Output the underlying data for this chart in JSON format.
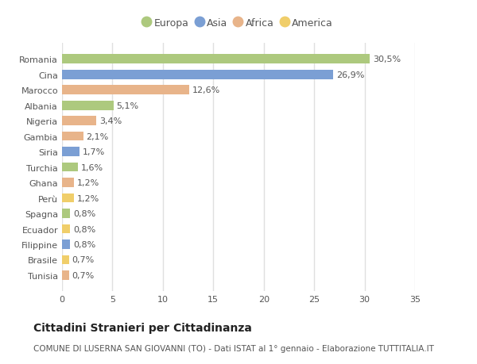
{
  "categories": [
    "Romania",
    "Cina",
    "Marocco",
    "Albania",
    "Nigeria",
    "Gambia",
    "Siria",
    "Turchia",
    "Ghana",
    "Perù",
    "Spagna",
    "Ecuador",
    "Filippine",
    "Brasile",
    "Tunisia"
  ],
  "values": [
    30.5,
    26.9,
    12.6,
    5.1,
    3.4,
    2.1,
    1.7,
    1.6,
    1.2,
    1.2,
    0.8,
    0.8,
    0.8,
    0.7,
    0.7
  ],
  "labels": [
    "30,5%",
    "26,9%",
    "12,6%",
    "5,1%",
    "3,4%",
    "2,1%",
    "1,7%",
    "1,6%",
    "1,2%",
    "1,2%",
    "0,8%",
    "0,8%",
    "0,8%",
    "0,7%",
    "0,7%"
  ],
  "continents": [
    "Europa",
    "Asia",
    "Africa",
    "Europa",
    "Africa",
    "Africa",
    "Asia",
    "Europa",
    "Africa",
    "America",
    "Europa",
    "America",
    "Asia",
    "America",
    "Africa"
  ],
  "colors": {
    "Europa": "#adc97e",
    "Asia": "#7b9fd4",
    "Africa": "#e8b48a",
    "America": "#f0ce6a"
  },
  "title": "Cittadini Stranieri per Cittadinanza",
  "subtitle": "COMUNE DI LUSERNA SAN GIOVANNI (TO) - Dati ISTAT al 1° gennaio - Elaborazione TUTTITALIA.IT",
  "xlim": [
    0,
    35
  ],
  "xticks": [
    0,
    5,
    10,
    15,
    20,
    25,
    30,
    35
  ],
  "background_color": "#ffffff",
  "grid_color": "#e0e0e0",
  "title_fontsize": 10,
  "subtitle_fontsize": 7.5,
  "tick_fontsize": 8,
  "label_fontsize": 8,
  "legend_fontsize": 9,
  "bar_height": 0.6
}
